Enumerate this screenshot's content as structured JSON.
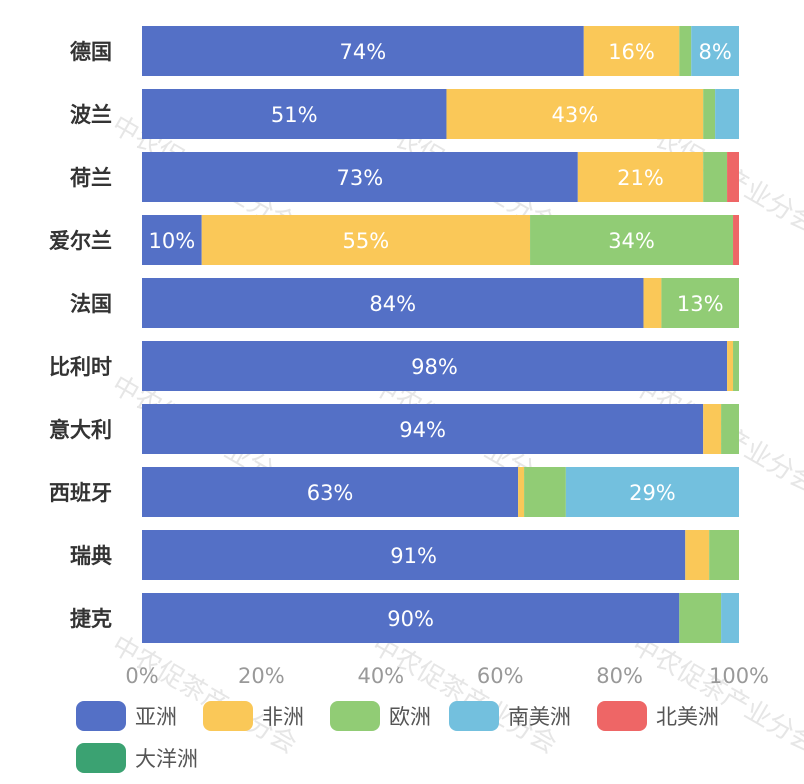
{
  "chart_data": {
    "type": "bar",
    "orientation": "horizontal",
    "stacked": true,
    "categories": [
      "德国",
      "波兰",
      "荷兰",
      "爱尔兰",
      "法国",
      "比利时",
      "意大利",
      "西班牙",
      "瑞典",
      "捷克"
    ],
    "series": [
      {
        "name": "亚洲",
        "color": "#5470c6",
        "values": [
          74,
          51,
          73,
          10,
          84,
          98,
          94,
          63,
          91,
          90
        ]
      },
      {
        "name": "非洲",
        "color": "#fac858",
        "values": [
          16,
          43,
          21,
          55,
          3,
          1,
          3,
          1,
          4,
          0
        ]
      },
      {
        "name": "欧洲",
        "color": "#91cc75",
        "values": [
          2,
          2,
          4,
          34,
          13,
          1,
          3,
          7,
          5,
          7
        ]
      },
      {
        "name": "南美洲",
        "color": "#73c0de",
        "values": [
          8,
          4,
          0,
          0,
          0,
          0,
          0,
          29,
          0,
          3
        ]
      },
      {
        "name": "北美洲",
        "color": "#ee6666",
        "values": [
          0,
          0,
          2,
          1,
          0,
          0,
          0,
          0,
          0,
          0
        ]
      },
      {
        "name": "大洋洲",
        "color": "#3ba272",
        "values": [
          0,
          0,
          0,
          0,
          0,
          0,
          0,
          0,
          0,
          0
        ]
      }
    ],
    "xlim": [
      0,
      100
    ],
    "x_ticks": [
      "0%",
      "20%",
      "40%",
      "60%",
      "80%",
      "100%"
    ],
    "label_threshold": 8,
    "legend_position": "bottom-left",
    "grid": false
  },
  "watermark": "中农促茶产业分会"
}
